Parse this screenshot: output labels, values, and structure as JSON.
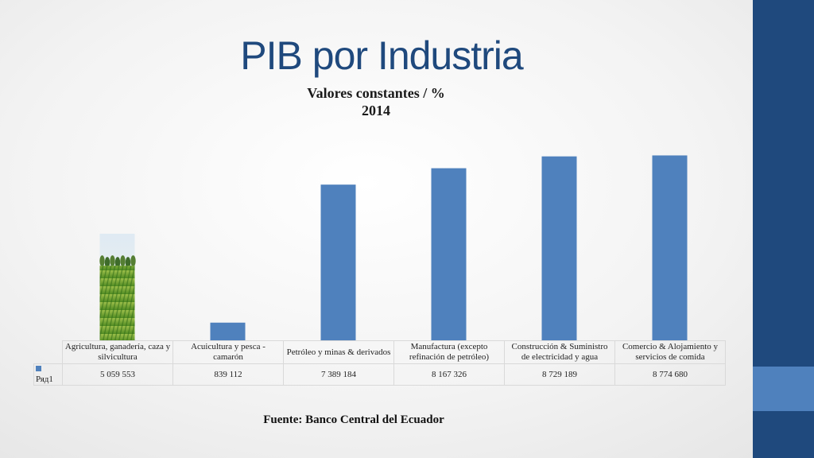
{
  "slide_title": "PIB por Industria",
  "chart_data": {
    "type": "bar",
    "title": "Valores constantes / %",
    "subtitle": "2014",
    "categories": [
      "Agricultura, ganadería, caza y silvicultura",
      "Acuicultura y pesca - camarón",
      "Petróleo y minas & derivados",
      "Manufactura (excepto refinación de petróleo)",
      "Construcción & Suministro de electricidad y agua",
      "Comercio & Alojamiento y servicios de comida"
    ],
    "series": [
      {
        "name": "Ряд1",
        "values": [
          5059553,
          839112,
          7389184,
          8167326,
          8729189,
          8774680
        ],
        "value_labels": [
          "5 059 553",
          "839 112",
          "7 389 184",
          "8 167 326",
          "8 729 189",
          "8 774 680"
        ],
        "first_bar_fill": "field-photo"
      }
    ],
    "ylim": [
      0,
      10000000
    ],
    "grid": false,
    "legend": "data-table",
    "colors": {
      "bar": "#4f81bd"
    }
  },
  "source": "Fuente: Banco Central del Ecuador",
  "colors": {
    "title": "#1f497d",
    "sidebar": "#1f497d",
    "sidebar_accent": "#4f81bd"
  }
}
